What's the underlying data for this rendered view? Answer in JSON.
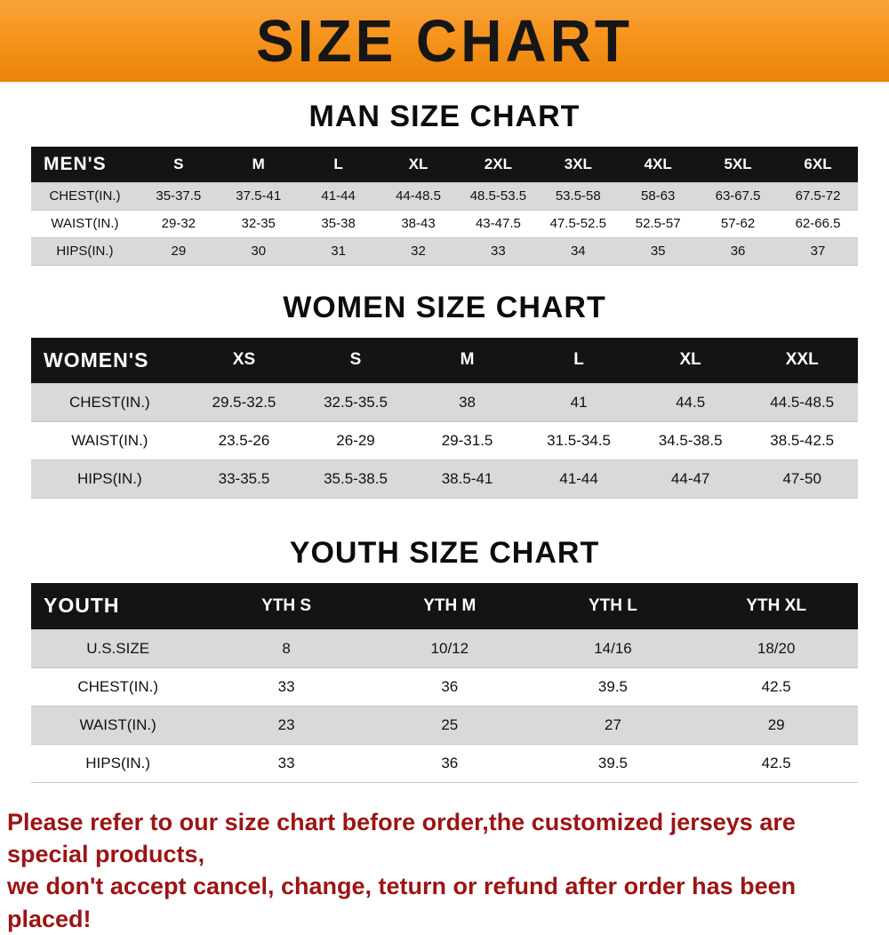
{
  "banner": {
    "title": "SIZE CHART",
    "bg_color": "#f7941e",
    "text_color": "#161616"
  },
  "sections": [
    {
      "id": "men",
      "heading": "MAN SIZE CHART",
      "table": {
        "header_label": "MEN'S",
        "columns": [
          "S",
          "M",
          "L",
          "XL",
          "2XL",
          "3XL",
          "4XL",
          "5XL",
          "6XL"
        ],
        "rows": [
          {
            "label": "CHEST(IN.)",
            "values": [
              "35-37.5",
              "37.5-41",
              "41-44",
              "44-48.5",
              "48.5-53.5",
              "53.5-58",
              "58-63",
              "63-67.5",
              "67.5-72"
            ]
          },
          {
            "label": "WAIST(IN.)",
            "values": [
              "29-32",
              "32-35",
              "35-38",
              "38-43",
              "43-47.5",
              "47.5-52.5",
              "52.5-57",
              "57-62",
              "62-66.5"
            ]
          },
          {
            "label": "HIPS(IN.)",
            "values": [
              "29",
              "30",
              "31",
              "32",
              "33",
              "34",
              "35",
              "36",
              "37"
            ]
          }
        ]
      }
    },
    {
      "id": "women",
      "heading": "WOMEN SIZE CHART",
      "table": {
        "header_label": "WOMEN'S",
        "columns": [
          "XS",
          "S",
          "M",
          "L",
          "XL",
          "XXL"
        ],
        "rows": [
          {
            "label": "CHEST(IN.)",
            "values": [
              "29.5-32.5",
              "32.5-35.5",
              "38",
              "41",
              "44.5",
              "44.5-48.5"
            ]
          },
          {
            "label": "WAIST(IN.)",
            "values": [
              "23.5-26",
              "26-29",
              "29-31.5",
              "31.5-34.5",
              "34.5-38.5",
              "38.5-42.5"
            ]
          },
          {
            "label": "HIPS(IN.)",
            "values": [
              "33-35.5",
              "35.5-38.5",
              "38.5-41",
              "41-44",
              "44-47",
              "47-50"
            ]
          }
        ]
      }
    },
    {
      "id": "youth",
      "heading": "YOUTH SIZE CHART",
      "table": {
        "header_label": "YOUTH",
        "columns": [
          "YTH S",
          "YTH M",
          "YTH L",
          "YTH XL"
        ],
        "rows": [
          {
            "label": "U.S.SIZE",
            "values": [
              "8",
              "10/12",
              "14/16",
              "18/20"
            ]
          },
          {
            "label": "CHEST(IN.)",
            "values": [
              "33",
              "36",
              "39.5",
              "42.5"
            ]
          },
          {
            "label": "WAIST(IN.)",
            "values": [
              "23",
              "25",
              "27",
              "29"
            ]
          },
          {
            "label": "HIPS(IN.)",
            "values": [
              "33",
              "36",
              "39.5",
              "42.5"
            ]
          }
        ]
      }
    }
  ],
  "footer": {
    "line1": "Please refer to our size chart before order,the customized jerseys are special products,",
    "line2": "we don't accept cancel, change, teturn or refund after order has been placed!",
    "text_color": "#9c1414"
  }
}
